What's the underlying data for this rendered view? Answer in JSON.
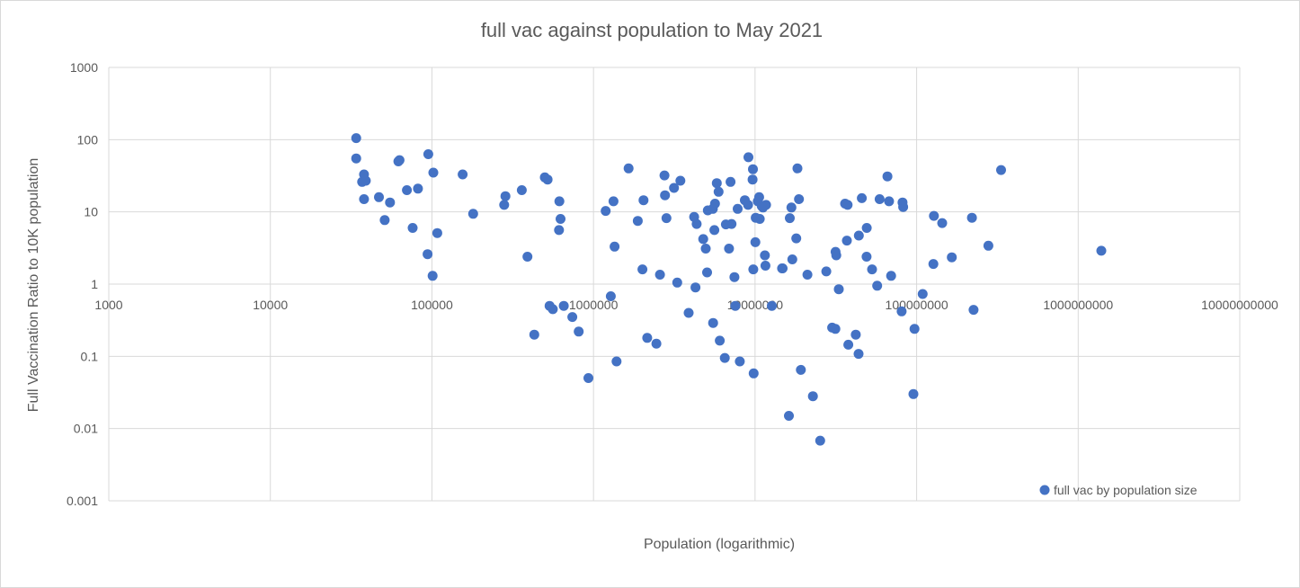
{
  "chart_data": {
    "type": "scatter",
    "title": "full vac against population to May 2021",
    "xlabel": "Population (logarithmic)",
    "ylabel": "Full Vaccination Ratio to 10K population",
    "x_scale": "log",
    "y_scale": "log",
    "xlim": [
      1000,
      10000000000
    ],
    "ylim": [
      0.001,
      1000
    ],
    "x_ticks": [
      "1000",
      "10000",
      "100000",
      "1000000",
      "10000000",
      "100000000",
      "1000000000",
      "10000000000"
    ],
    "y_ticks": [
      "1000",
      "100",
      "10",
      "1",
      "0.1",
      "0.01",
      "0.001"
    ],
    "grid": true,
    "legend_position": "bottom-right",
    "marker_color": "#4472c4",
    "series": [
      {
        "name": "full vac by population size",
        "points": [
          [
            34000,
            105
          ],
          [
            34000,
            55
          ],
          [
            37000,
            26
          ],
          [
            38000,
            33
          ],
          [
            39000,
            27
          ],
          [
            38000,
            15
          ],
          [
            47000,
            16
          ],
          [
            51000,
            7.7
          ],
          [
            55000,
            13.5
          ],
          [
            62000,
            50
          ],
          [
            63000,
            52
          ],
          [
            70000,
            20
          ],
          [
            76000,
            6
          ],
          [
            82000,
            21
          ],
          [
            95000,
            63
          ],
          [
            94000,
            2.6
          ],
          [
            102000,
            35
          ],
          [
            101000,
            1.3
          ],
          [
            108000,
            5.1
          ],
          [
            155000,
            33
          ],
          [
            180000,
            9.4
          ],
          [
            280000,
            12.5
          ],
          [
            285000,
            16.5
          ],
          [
            360000,
            20
          ],
          [
            390000,
            2.4
          ],
          [
            430000,
            0.2
          ],
          [
            500000,
            30
          ],
          [
            520000,
            28
          ],
          [
            535000,
            0.5
          ],
          [
            560000,
            0.45
          ],
          [
            615000,
            14
          ],
          [
            625000,
            8
          ],
          [
            612000,
            5.6
          ],
          [
            655000,
            0.5
          ],
          [
            740000,
            0.35
          ],
          [
            810000,
            0.22
          ],
          [
            930000,
            0.05
          ],
          [
            1190000,
            10.3
          ],
          [
            1280000,
            0.68
          ],
          [
            1330000,
            14
          ],
          [
            1350000,
            3.3
          ],
          [
            1390000,
            0.085
          ],
          [
            1650000,
            40
          ],
          [
            1880000,
            7.5
          ],
          [
            2040000,
            14.5
          ],
          [
            2010000,
            1.6
          ],
          [
            2150000,
            0.18
          ],
          [
            2450000,
            0.15
          ],
          [
            2580000,
            1.35
          ],
          [
            2750000,
            32
          ],
          [
            2770000,
            17
          ],
          [
            2830000,
            8.2
          ],
          [
            3150000,
            21.5
          ],
          [
            3300000,
            1.05
          ],
          [
            3450000,
            27
          ],
          [
            3880000,
            0.4
          ],
          [
            4200000,
            8.5
          ],
          [
            4350000,
            6.8
          ],
          [
            4280000,
            0.9
          ],
          [
            4780000,
            4.2
          ],
          [
            4950000,
            3.1
          ],
          [
            5100000,
            10.5
          ],
          [
            5050000,
            1.45
          ],
          [
            5480000,
            11
          ],
          [
            5650000,
            13
          ],
          [
            5600000,
            5.6
          ],
          [
            5500000,
            0.29
          ],
          [
            5800000,
            25
          ],
          [
            5950000,
            19
          ],
          [
            6050000,
            0.165
          ],
          [
            6500000,
            0.095
          ],
          [
            6600000,
            6.7
          ],
          [
            6900000,
            3.1
          ],
          [
            7050000,
            26
          ],
          [
            7150000,
            6.8
          ],
          [
            7450000,
            1.25
          ],
          [
            7550000,
            0.5
          ],
          [
            7800000,
            11
          ],
          [
            8050000,
            0.085
          ],
          [
            8650000,
            14.5
          ],
          [
            9050000,
            12.5
          ],
          [
            9100000,
            57
          ],
          [
            9650000,
            28
          ],
          [
            9700000,
            39
          ],
          [
            9750000,
            1.6
          ],
          [
            9800000,
            0.058
          ],
          [
            10100000,
            8.3
          ],
          [
            10050000,
            3.8
          ],
          [
            10400000,
            14
          ],
          [
            10600000,
            16
          ],
          [
            10700000,
            8
          ],
          [
            11000000,
            12
          ],
          [
            11200000,
            11.5
          ],
          [
            11500000,
            2.5
          ],
          [
            11700000,
            12.5
          ],
          [
            11600000,
            1.8
          ],
          [
            12700000,
            0.5
          ],
          [
            14700000,
            1.65
          ],
          [
            14800000,
            1.65
          ],
          [
            16400000,
            8.2
          ],
          [
            16200000,
            0.015
          ],
          [
            16800000,
            11.5
          ],
          [
            17000000,
            2.2
          ],
          [
            18000000,
            4.3
          ],
          [
            18300000,
            40
          ],
          [
            18700000,
            15
          ],
          [
            19200000,
            0.065
          ],
          [
            21100000,
            1.35
          ],
          [
            22800000,
            0.028
          ],
          [
            25300000,
            0.0068
          ],
          [
            27600000,
            1.5
          ],
          [
            30000000,
            0.25
          ],
          [
            31500000,
            2.8
          ],
          [
            31800000,
            2.5
          ],
          [
            31400000,
            0.24
          ],
          [
            33000000,
            0.85
          ],
          [
            36100000,
            13
          ],
          [
            37400000,
            12.5
          ],
          [
            37000000,
            4
          ],
          [
            37800000,
            0.145
          ],
          [
            42000000,
            0.2
          ],
          [
            43900000,
            4.7
          ],
          [
            43700000,
            0.108
          ],
          [
            45800000,
            15.5
          ],
          [
            49100000,
            6
          ],
          [
            49000000,
            2.4
          ],
          [
            53000000,
            1.6
          ],
          [
            57000000,
            0.95
          ],
          [
            59000000,
            15
          ],
          [
            66000000,
            31
          ],
          [
            67500000,
            14
          ],
          [
            69500000,
            1.3
          ],
          [
            81800000,
            13.5
          ],
          [
            82500000,
            11.7
          ],
          [
            80800000,
            0.42
          ],
          [
            97000000,
            0.24
          ],
          [
            95500000,
            0.03
          ],
          [
            109000000,
            0.73
          ],
          [
            127000000,
            1.9
          ],
          [
            128000000,
            8.8
          ],
          [
            144000000,
            7
          ],
          [
            165000000,
            2.35
          ],
          [
            220000000,
            8.3
          ],
          [
            225000000,
            0.44
          ],
          [
            278000000,
            3.4
          ],
          [
            333000000,
            38
          ],
          [
            1390000000,
            2.9
          ]
        ]
      }
    ]
  }
}
